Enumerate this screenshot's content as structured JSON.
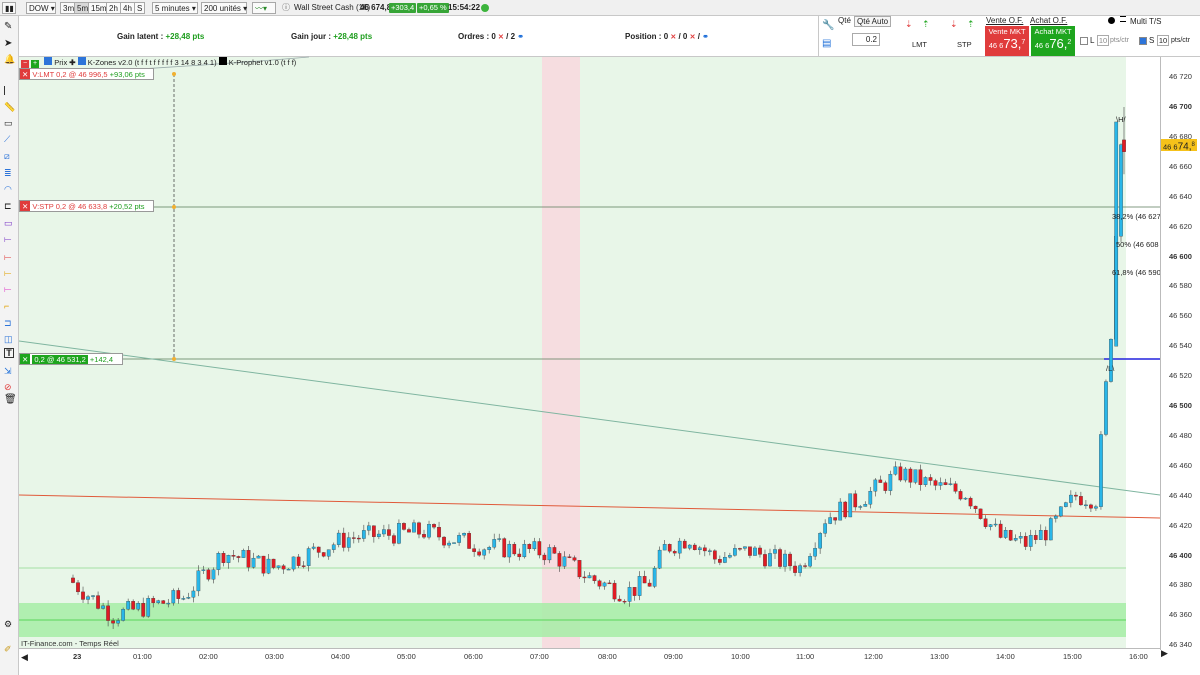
{
  "toolbar": {
    "symbol": "DOW",
    "intervals": [
      "3m",
      "5m",
      "15m",
      "2h",
      "4h",
      "S"
    ],
    "selected_interval": "5m",
    "period": "5 minutes",
    "units": "200 unités",
    "instrument": "Wall Street Cash (1€)",
    "last_price": "46 674,8",
    "change_pts": "+303,4",
    "change_pct": "+0,65 %",
    "clock": "15:54:22"
  },
  "panel": {
    "gain_latent_label": "Gain latent :",
    "gain_latent_value": "+28,48 pts",
    "gain_jour_label": "Gain jour :",
    "gain_jour_value": "+28,48 pts",
    "ordres_label": "Ordres :",
    "ordres_a": "0",
    "ordres_b": "2",
    "position_label": "Position :",
    "position_a": "0",
    "position_b": "0",
    "qty_label": "Qté",
    "qty_auto_label": "Qté Auto",
    "qty_value": "0.2",
    "lmt_label": "LMT",
    "stp_label": "STP",
    "vente_of_label": "Vente O.F.",
    "achat_of_label": "Achat O.F.",
    "vente_mkt_label": "Vente MKT",
    "vente_mkt_small": "46 6",
    "vente_mkt_big": "73,",
    "vente_mkt_sup": "7",
    "achat_mkt_label": "Achat MKT",
    "achat_mkt_small": "46 6",
    "achat_mkt_big": "76,",
    "achat_mkt_sup": "2",
    "multi_ts_label": "Multi T/S",
    "l_label": "L",
    "l_value": "10",
    "l_unit": "pts/ctr",
    "s_label": "S",
    "s_value": "10",
    "s_unit": "pts/ctr"
  },
  "chart_header": {
    "prix_label": "Prix",
    "kzones": "K-Zones v2.0 (t f f t f f f f f 3 14 8 3 4 1)",
    "kprophet": "K-Prophet v1.0 (t f f)"
  },
  "orders": {
    "lmt_text": "V:LMT  0,2  @  46 996,5",
    "lmt_pts": "+93,06  pts",
    "stp_text": "V:STP  0,2  @  46 633,8",
    "stp_pts": "+20,52  pts",
    "pos_text": "0,2  @  46 531,2",
    "pos_pts": "+142,4"
  },
  "fib": {
    "high_label": "\\H/",
    "low_label": "/L\\",
    "f382": "38,2% (46 627 )",
    "f50": "50% (46 608 )",
    "f618": "61,8% (46 590 )"
  },
  "price_axis": {
    "labels": [
      "46 720",
      "46 700",
      "46 680",
      "46 660",
      "46 640",
      "46 620",
      "46 600",
      "46 580",
      "46 560",
      "46 540",
      "46 520",
      "46 500",
      "46 480",
      "46 460",
      "46 440",
      "46 420",
      "46 400",
      "46 380",
      "46 360",
      "46 340"
    ],
    "current_small": "46 6",
    "current_big": "74,",
    "current_sup": "8"
  },
  "time_axis": {
    "labels": [
      "23",
      "01:00",
      "02:00",
      "03:00",
      "04:00",
      "05:00",
      "06:00",
      "07:00",
      "08:00",
      "09:00",
      "10:00",
      "11:00",
      "12:00",
      "13:00",
      "14:00",
      "15:00",
      "16:00"
    ]
  },
  "footer": {
    "source": "IT-Finance.com - Temps Réel"
  },
  "colors": {
    "up": "#29b6e8",
    "down": "#e01b24",
    "bg_zone": "#e8f6e8",
    "red_zone": "#f6dde0",
    "support": "#a6eda6",
    "trend": "#7fb5a0",
    "level": "#e05a3a",
    "buy": "#1ea51e",
    "sell": "#e03c3c"
  },
  "chart_data": {
    "type": "candlestick",
    "y_range": [
      46330,
      46730
    ],
    "trendlines": [
      {
        "name": "descending",
        "from": [
          "22:50",
          46545
        ],
        "to": [
          "16:15",
          46437
        ]
      },
      {
        "name": "horizontal",
        "from": [
          "22:50",
          46440
        ],
        "to": [
          "16:15",
          46425
        ]
      }
    ],
    "levels": [
      46996.5,
      46633.8,
      46531.2,
      46531.2
    ],
    "candles_ohlc_sample": [
      [
        46380,
        46385,
        46360,
        46365
      ],
      [
        46365,
        46372,
        46355,
        46360
      ],
      [
        46395,
        46420,
        46390,
        46412
      ],
      [
        46400,
        46428,
        46395,
        46420
      ],
      [
        46410,
        46422,
        46370,
        46375
      ],
      [
        46420,
        46445,
        46415,
        46440
      ],
      [
        46440,
        46462,
        46430,
        46455
      ],
      [
        46450,
        46460,
        46395,
        46402
      ],
      [
        46420,
        46450,
        46410,
        46445
      ],
      [
        46530,
        46690,
        46525,
        46680
      ],
      [
        46680,
        46700,
        46655,
        46674.8
      ]
    ]
  }
}
